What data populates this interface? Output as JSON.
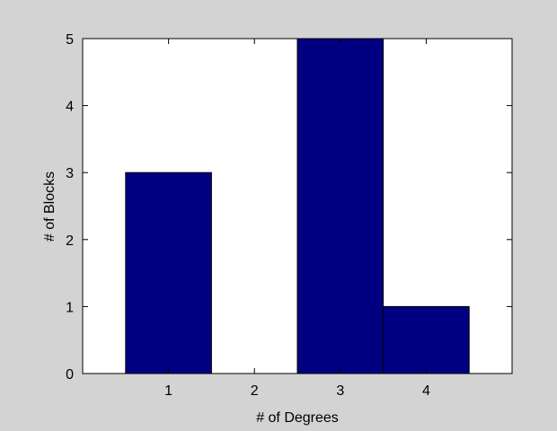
{
  "chart_data": {
    "type": "bar",
    "categories": [
      "1",
      "2",
      "3",
      "4"
    ],
    "values": [
      3,
      0,
      5,
      1
    ],
    "xlabel": "# of Degrees",
    "ylabel": "# of Blocks",
    "xlim": [
      0,
      5
    ],
    "ylim": [
      0,
      5
    ],
    "yticks": [
      "0",
      "1",
      "2",
      "3",
      "4",
      "5"
    ],
    "grid": false,
    "colors": {
      "bar": "#000080",
      "bar_edge": "#000000",
      "axes_bg": "#ffffff",
      "figure_bg": "#d3d3d3"
    }
  }
}
